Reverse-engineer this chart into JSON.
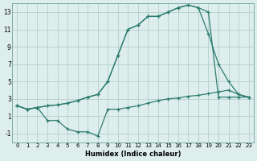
{
  "xlabel": "Humidex (Indice chaleur)",
  "background_color": "#ddeeed",
  "line_color": "#2d7d6e",
  "grid_color": "#adc9c4",
  "xlim": [
    -0.5,
    23.5
  ],
  "ylim": [
    -2,
    14
  ],
  "xticks": [
    0,
    1,
    2,
    3,
    4,
    5,
    6,
    7,
    8,
    9,
    10,
    11,
    12,
    13,
    14,
    15,
    16,
    17,
    18,
    19,
    20,
    21,
    22,
    23
  ],
  "yticks": [
    -1,
    1,
    3,
    5,
    7,
    9,
    11,
    13
  ],
  "series": [
    {
      "x": [
        0,
        1,
        2,
        3,
        4,
        5,
        6,
        7,
        8,
        9,
        10,
        11,
        12,
        13,
        14,
        15,
        16,
        17,
        18,
        19,
        20,
        21,
        22,
        23
      ],
      "y": [
        2.2,
        1.8,
        2.0,
        2.2,
        2.3,
        2.5,
        2.8,
        3.2,
        3.5,
        5.0,
        8.0,
        11.0,
        11.5,
        12.5,
        12.5,
        13.0,
        13.5,
        13.8,
        13.5,
        13.0,
        3.2,
        3.2,
        3.2,
        3.2
      ]
    },
    {
      "x": [
        0,
        1,
        2,
        3,
        4,
        5,
        6,
        7,
        8,
        9,
        10,
        11,
        12,
        13,
        14,
        15,
        16,
        17,
        18,
        19,
        20,
        21,
        22,
        23
      ],
      "y": [
        2.2,
        1.8,
        2.0,
        2.2,
        2.3,
        2.5,
        2.8,
        3.2,
        3.5,
        5.0,
        8.0,
        11.0,
        11.5,
        12.5,
        12.5,
        13.0,
        13.5,
        13.8,
        13.5,
        10.5,
        7.0,
        5.0,
        3.5,
        3.2
      ]
    },
    {
      "x": [
        0,
        1,
        2,
        3,
        4,
        5,
        6,
        7,
        8,
        9,
        10,
        11,
        12,
        13,
        14,
        15,
        16,
        17,
        18,
        19,
        20,
        21,
        22,
        23
      ],
      "y": [
        2.2,
        1.8,
        2.0,
        0.5,
        0.5,
        -0.5,
        -0.8,
        -0.8,
        -1.3,
        1.8,
        1.8,
        2.0,
        2.2,
        2.5,
        2.8,
        3.0,
        3.1,
        3.3,
        3.4,
        3.6,
        3.8,
        4.0,
        3.5,
        3.2
      ]
    }
  ]
}
